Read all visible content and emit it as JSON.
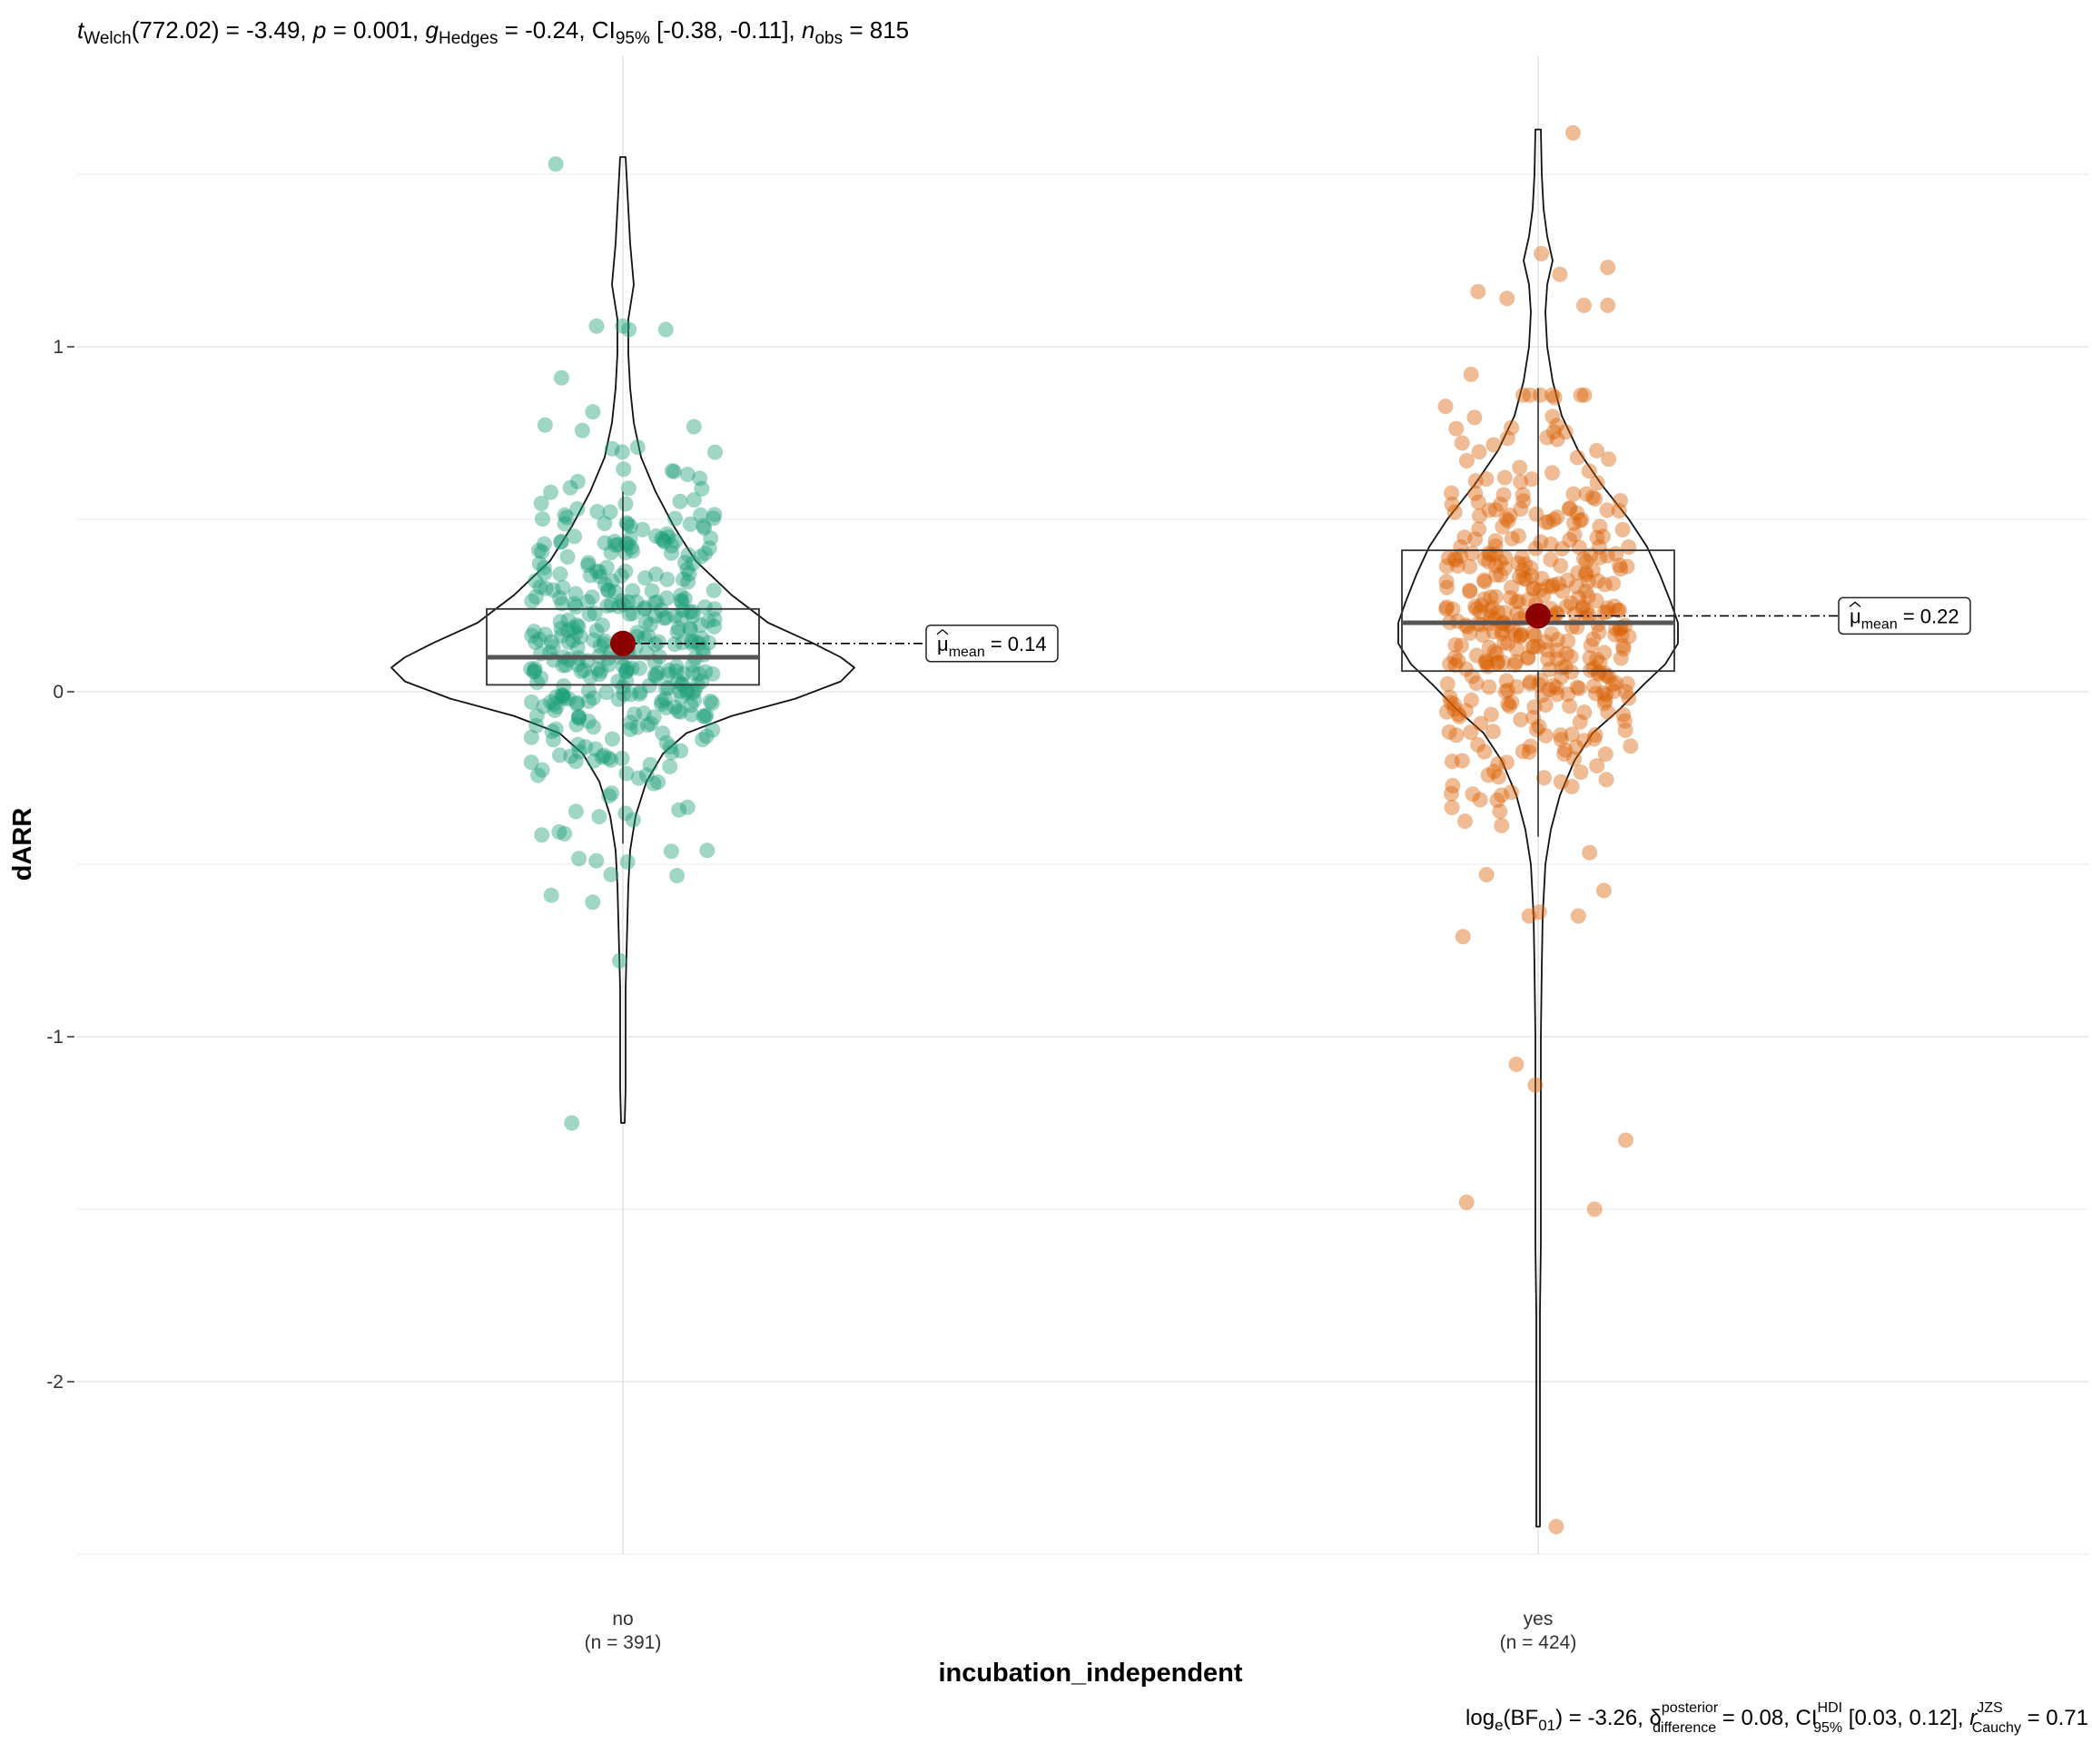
{
  "chart_data": {
    "type": "violin-box-scatter",
    "subtitle_parts": {
      "t_symbol": "t",
      "t_sub": "Welch",
      "t_value": "(772.02) = -3.49, ",
      "p_symbol": "p",
      "p_value": " = 0.001, ",
      "g_symbol": "g",
      "g_sub": "Hedges",
      "g_value": " = -0.24, CI",
      "ci_sub": "95%",
      "ci_value": " [-0.38, -0.11], ",
      "n_symbol": "n",
      "n_sub": "obs",
      "n_value": " = 815"
    },
    "caption_parts": {
      "log_text": "log",
      "log_sub": "e",
      "bf_text": "(BF",
      "bf_sub": "01",
      "bf_value": ") = -3.26, ",
      "delta_symbol": "δ",
      "delta_sup": "posterior",
      "delta_sub": "difference",
      "delta_value": " = 0.08, CI",
      "hdi_sup": "HDI",
      "hdi_sub": "95%",
      "hdi_value": " [0.03, 0.12], ",
      "r_symbol": "r",
      "r_sup": "JZS",
      "r_sub": "Cauchy",
      "r_value": " = 0.71"
    },
    "xlabel": "incubation_independent",
    "ylabel": "dARR",
    "ylim": [
      -2.5,
      1.75
    ],
    "yticks": [
      -2,
      -1,
      0,
      1
    ],
    "ytick_labels": [
      "-2",
      "-1",
      "0",
      "1"
    ],
    "grid": true,
    "groups": [
      {
        "name": "no",
        "n_label": "(n = 391)",
        "color": "#1B9E77",
        "mean": 0.14,
        "mean_label_prefix": "μ",
        "mean_label_sub": "mean",
        "mean_label_value": " = 0.14",
        "box": {
          "q1": 0.02,
          "median": 0.1,
          "q3": 0.24,
          "whisker_low": -0.44,
          "whisker_high": 0.58
        },
        "range": [
          -1.25,
          1.55
        ],
        "outliers": [
          1.53,
          1.06,
          1.06,
          1.05,
          1.05,
          0.91,
          -1.25,
          -0.78,
          -0.61,
          -0.59,
          -0.53,
          -0.49,
          -0.46
        ]
      },
      {
        "name": "yes",
        "n_label": "(n = 424)",
        "color": "#D95F02",
        "mean": 0.22,
        "mean_label_prefix": "μ",
        "mean_label_sub": "mean",
        "mean_label_value": " = 0.22",
        "box": {
          "q1": 0.06,
          "median": 0.2,
          "q3": 0.41,
          "whisker_low": -0.42,
          "whisker_high": 0.88
        },
        "range": [
          -2.42,
          1.63
        ],
        "outliers": [
          1.62,
          1.27,
          1.23,
          1.21,
          1.16,
          1.14,
          1.12,
          1.12,
          0.92,
          -0.71,
          -1.08,
          -1.14,
          -1.3,
          -1.48,
          -1.5,
          -2.42
        ]
      }
    ],
    "mean_point_color": "#8B0000"
  }
}
